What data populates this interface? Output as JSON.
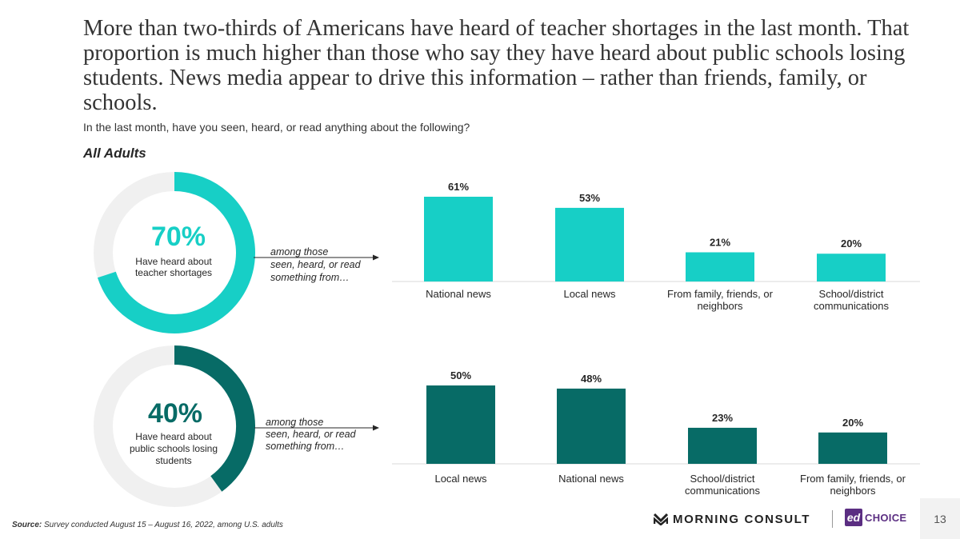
{
  "headline": "More than two-thirds of Americans have heard of teacher shortages in the last month. That proportion is much higher than those who say they have heard about public schools losing students. News media appear to drive this information – rather than friends, family, or schools.",
  "question": "In the last month, have you seen, heard, or read anything about the following?",
  "segment_label": "All Adults",
  "colors": {
    "teal": "#17cfc6",
    "dark_teal": "#076b66",
    "ring_bg": "#f0f0f0",
    "axis": "#d9d9d9"
  },
  "donuts": [
    {
      "value": 70,
      "value_label": "70%",
      "caption_lines": [
        "Have heard about",
        "teacher shortages"
      ],
      "color": "#17cfc6"
    },
    {
      "value": 40,
      "value_label": "40%",
      "caption_lines": [
        "Have heard about",
        "public schools losing",
        "students"
      ],
      "color": "#076b66"
    }
  ],
  "arrow_notes": [
    {
      "lines": [
        "among those",
        "seen, heard, or read",
        "something from…"
      ]
    },
    {
      "lines": [
        "among those",
        "seen, heard, or read",
        "something from…"
      ]
    }
  ],
  "chart_data": [
    {
      "type": "bar",
      "title": "Have heard about teacher shortages",
      "categories": [
        [
          "National news"
        ],
        [
          "Local news"
        ],
        [
          "From family, friends, or",
          "neighbors"
        ],
        [
          "School/district",
          "communications"
        ]
      ],
      "values": [
        61,
        53,
        21,
        20
      ],
      "value_labels": [
        "61%",
        "53%",
        "21%",
        "20%"
      ],
      "ylim": [
        0,
        61
      ],
      "color": "#17cfc6"
    },
    {
      "type": "bar",
      "title": "Have heard about public schools losing students",
      "categories": [
        [
          "Local news"
        ],
        [
          "National news"
        ],
        [
          "School/district",
          "communications"
        ],
        [
          "From family, friends, or",
          "neighbors"
        ]
      ],
      "values": [
        50,
        48,
        23,
        20
      ],
      "value_labels": [
        "50%",
        "48%",
        "23%",
        "20%"
      ],
      "ylim": [
        0,
        50
      ],
      "color": "#076b66"
    }
  ],
  "footer": {
    "source_label": "Source:",
    "source_text": " Survey conducted August 15 – August 16, 2022, among U.S. adults",
    "logo_morning_consult": "MORNING CONSULT",
    "logo_ed_mark": "ed",
    "logo_ed_word": "CHOICE",
    "page_number": "13"
  }
}
